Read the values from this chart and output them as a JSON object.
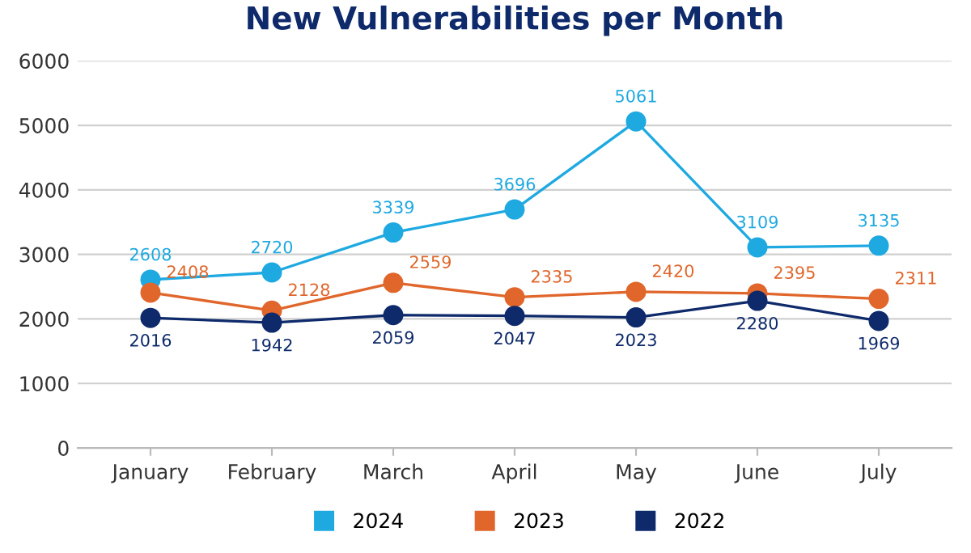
{
  "chart_data": {
    "type": "line",
    "title": "New Vulnerabilities per Month",
    "categories": [
      "January",
      "February",
      "March",
      "April",
      "May",
      "June",
      "July"
    ],
    "series": [
      {
        "name": "2024",
        "color": "#1fa9e1",
        "values": [
          2608,
          2720,
          3339,
          3696,
          5061,
          3109,
          3135
        ]
      },
      {
        "name": "2023",
        "color": "#e0662b",
        "values": [
          2408,
          2128,
          2559,
          2335,
          2420,
          2395,
          2311
        ]
      },
      {
        "name": "2022",
        "color": "#0e2a6b",
        "values": [
          2016,
          1942,
          2059,
          2047,
          2023,
          2280,
          1969
        ]
      }
    ],
    "ylim": [
      0,
      6000
    ],
    "yticks": [
      0,
      1000,
      2000,
      3000,
      4000,
      5000,
      6000
    ],
    "grid": "y",
    "legend": "bottom",
    "marker": "circle",
    "line_style": "solid",
    "data_labels": true
  }
}
